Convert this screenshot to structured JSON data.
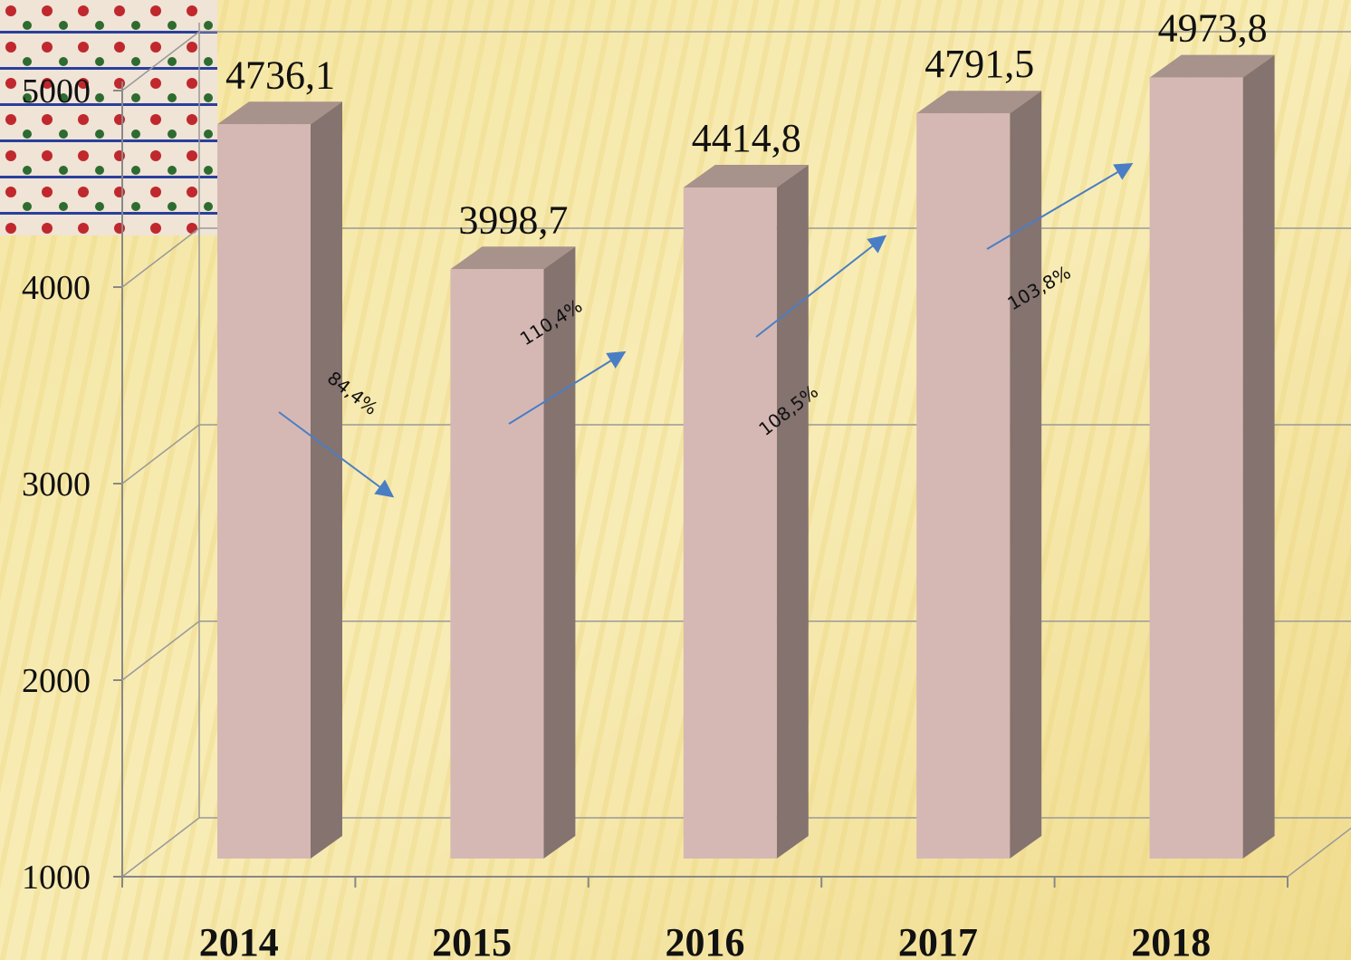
{
  "chart_data": {
    "type": "bar3d",
    "categories": [
      "2014",
      "2015",
      "2016",
      "2017",
      "2018"
    ],
    "values": [
      4736.1,
      3998.7,
      4414.8,
      4791.5,
      4973.8
    ],
    "value_labels": [
      "4736,1",
      "3998,7",
      "4414,8",
      "4791,5",
      "4973,8"
    ],
    "color": "#d5b8b4",
    "ylim": [
      1000,
      5000
    ],
    "yticks": [
      1000,
      2000,
      3000,
      4000,
      5000
    ],
    "grid": true,
    "annotations": [
      {
        "text": "84,4%"
      },
      {
        "text": "110,4%"
      },
      {
        "text": "108,5%"
      },
      {
        "text": "103,8%"
      }
    ]
  }
}
